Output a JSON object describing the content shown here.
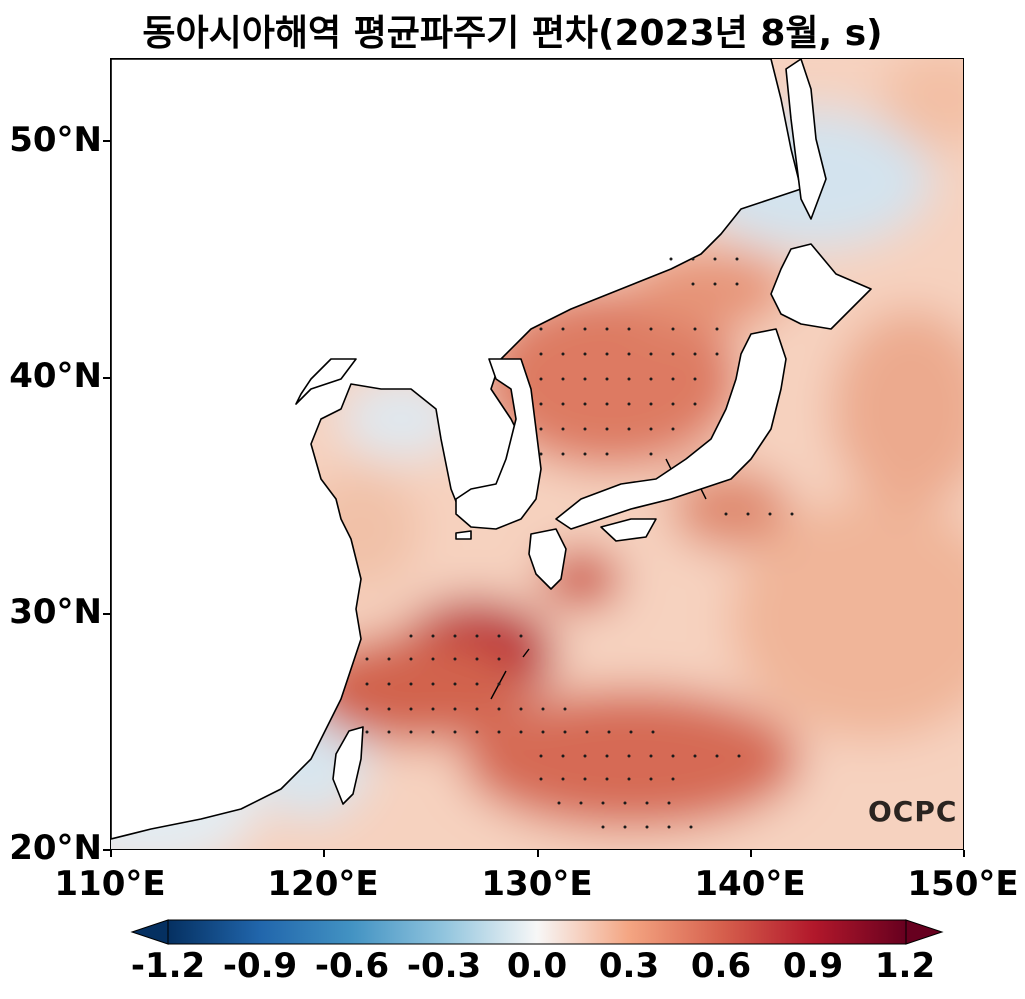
{
  "title": "동아시아해역 평균파주기 편차(2023년 8월, s)",
  "latitude_labels": [
    "50°N",
    "40°N",
    "30°N",
    "20°N"
  ],
  "longitude_labels": [
    "110°E",
    "120°E",
    "130°E",
    "140°E",
    "150°E"
  ],
  "colorbar": {
    "labels": [
      "-1.2",
      "-0.9",
      "-0.6",
      "-0.3",
      "0.0",
      "0.3",
      "0.6",
      "0.9",
      "1.2"
    ],
    "min": -1.2,
    "max": 1.2,
    "colors": [
      "#053061",
      "#2166ac",
      "#4393c3",
      "#92c5de",
      "#f7f7f7",
      "#f4a582",
      "#d6604d",
      "#b2182b",
      "#67001f"
    ]
  },
  "logo": "OCPC",
  "map": {
    "lon_range": [
      110,
      150
    ],
    "lat_range": [
      20,
      53.5
    ],
    "land_color": "#ffffff",
    "coastline_color": "#000000",
    "significance_marker": "stippling dots"
  }
}
